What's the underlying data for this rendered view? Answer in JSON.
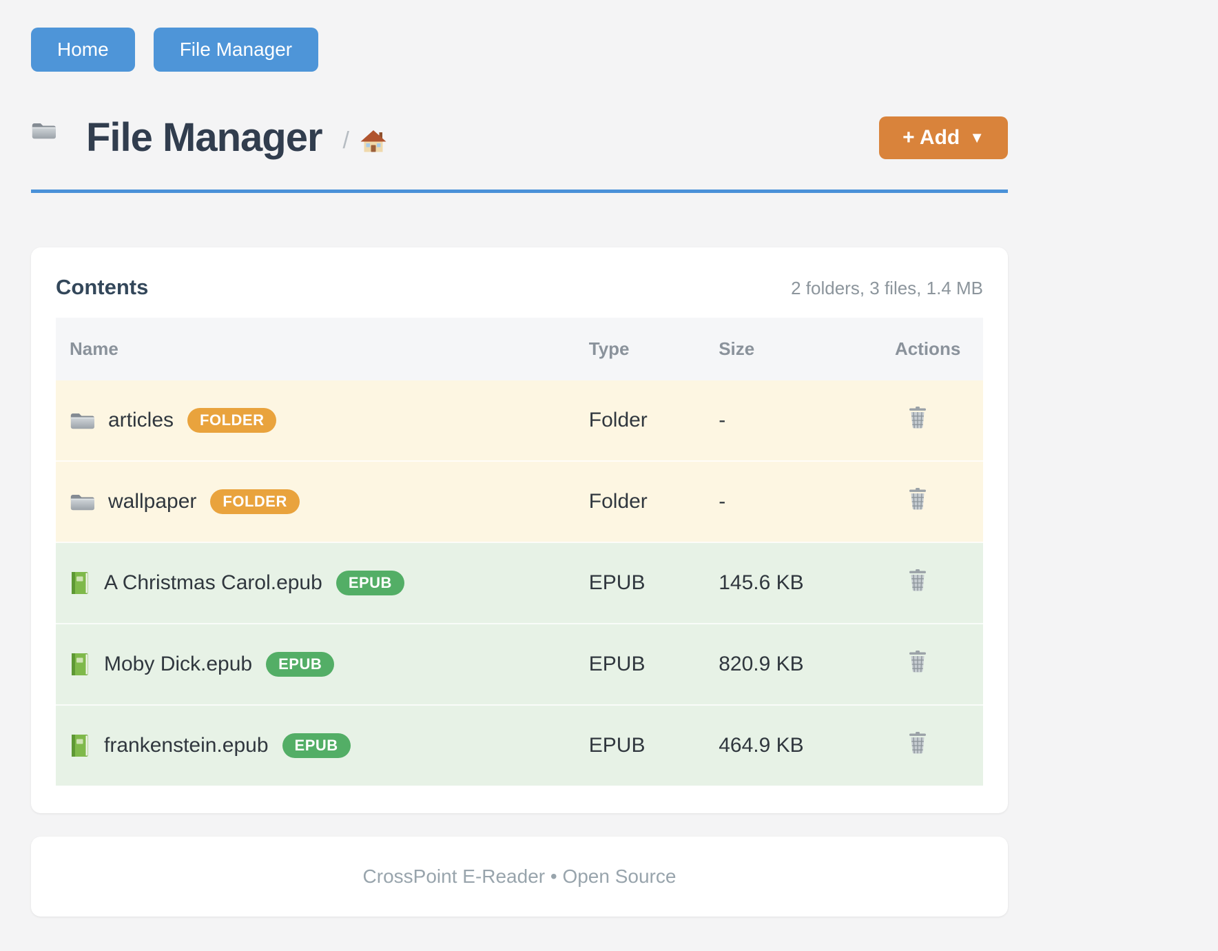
{
  "nav": {
    "buttons": [
      {
        "label": "Home"
      },
      {
        "label": "File Manager"
      }
    ]
  },
  "header": {
    "title": "File Manager",
    "breadcrumb_separator": "/",
    "add_button": {
      "label": "+ Add",
      "caret": "▼"
    }
  },
  "contents": {
    "title": "Contents",
    "summary": "2 folders, 3 files, 1.4 MB",
    "table": {
      "columns": [
        "Name",
        "Type",
        "Size",
        "Actions"
      ],
      "rows": [
        {
          "name": "articles",
          "kind": "folder",
          "badge": "FOLDER",
          "type": "Folder",
          "size": "-"
        },
        {
          "name": "wallpaper",
          "kind": "folder",
          "badge": "FOLDER",
          "type": "Folder",
          "size": "-"
        },
        {
          "name": "A Christmas Carol.epub",
          "kind": "epub",
          "badge": "EPUB",
          "type": "EPUB",
          "size": "145.6 KB"
        },
        {
          "name": "Moby Dick.epub",
          "kind": "epub",
          "badge": "EPUB",
          "type": "EPUB",
          "size": "820.9 KB"
        },
        {
          "name": "frankenstein.epub",
          "kind": "epub",
          "badge": "EPUB",
          "type": "EPUB",
          "size": "464.9 KB"
        }
      ]
    }
  },
  "footer": {
    "text": "CrossPoint E-Reader • Open Source"
  },
  "colors": {
    "page-bg": "#f4f4f5",
    "btn-blue": "#4e95d8",
    "rule-blue": "#4a91d8",
    "btn-orange": "#d9833b",
    "badge-folder": "#e9a33d",
    "badge-epub": "#53ae66",
    "row-folder": "#fdf6e2",
    "row-epub": "#e7f2e6"
  }
}
